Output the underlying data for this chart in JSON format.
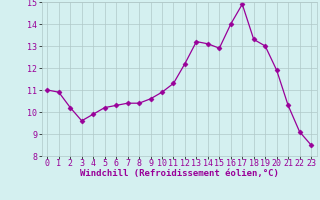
{
  "x": [
    0,
    1,
    2,
    3,
    4,
    5,
    6,
    7,
    8,
    9,
    10,
    11,
    12,
    13,
    14,
    15,
    16,
    17,
    18,
    19,
    20,
    21,
    22,
    23
  ],
  "y": [
    11.0,
    10.9,
    10.2,
    9.6,
    9.9,
    10.2,
    10.3,
    10.4,
    10.4,
    10.6,
    10.9,
    11.3,
    12.2,
    13.2,
    13.1,
    12.9,
    14.0,
    14.9,
    13.3,
    13.0,
    11.9,
    10.3,
    9.1,
    8.5
  ],
  "line_color": "#990099",
  "marker": "D",
  "markersize": 2.5,
  "linewidth": 0.9,
  "xlim": [
    -0.5,
    23.5
  ],
  "ylim": [
    8,
    15
  ],
  "yticks": [
    8,
    9,
    10,
    11,
    12,
    13,
    14,
    15
  ],
  "xticks": [
    0,
    1,
    2,
    3,
    4,
    5,
    6,
    7,
    8,
    9,
    10,
    11,
    12,
    13,
    14,
    15,
    16,
    17,
    18,
    19,
    20,
    21,
    22,
    23
  ],
  "xlabel": "Windchill (Refroidissement éolien,°C)",
  "background_color": "#d4f0f0",
  "grid_color": "#b0c8c8",
  "tick_label_color": "#990099",
  "axis_label_color": "#990099",
  "label_fontsize": 6.5,
  "tick_fontsize": 6.0
}
